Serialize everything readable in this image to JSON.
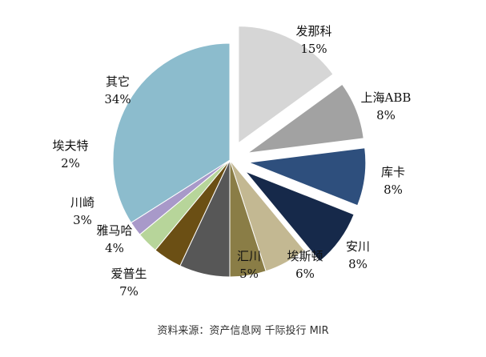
{
  "chart_data": {
    "type": "pie",
    "title": "",
    "slices": [
      {
        "name": "发那科",
        "value": 15,
        "label": "15%",
        "color": "#d6d6d6",
        "exploded": true
      },
      {
        "name": "上海ABB",
        "value": 8,
        "label": "8%",
        "color": "#a2a2a2",
        "exploded": true
      },
      {
        "name": "库卡",
        "value": 8,
        "label": "8%",
        "color": "#2e4f7d",
        "exploded": true
      },
      {
        "name": "安川",
        "value": 8,
        "label": "8%",
        "color": "#16294a",
        "exploded": true
      },
      {
        "name": "埃斯顿",
        "value": 6,
        "label": "6%",
        "color": "#c3b892",
        "exploded": false
      },
      {
        "name": "汇川",
        "value": 5,
        "label": "5%",
        "color": "#8a7d46",
        "exploded": false
      },
      {
        "name": "爱普生",
        "value": 7,
        "label": "7%",
        "color": "#575757",
        "exploded": false
      },
      {
        "name": "雅马哈",
        "value": 4,
        "label": "4%",
        "color": "#6b4f14",
        "exploded": false
      },
      {
        "name": "川崎",
        "value": 3,
        "label": "3%",
        "color": "#b7d59a",
        "exploded": false
      },
      {
        "name": "埃夫特",
        "value": 2,
        "label": "2%",
        "color": "#a899c9",
        "exploded": false
      },
      {
        "name": "其它",
        "value": 34,
        "label": "34%",
        "color": "#8cbccd",
        "exploded": false
      }
    ]
  },
  "source_note": "资料来源：资产信息网 千际投行 MIR"
}
